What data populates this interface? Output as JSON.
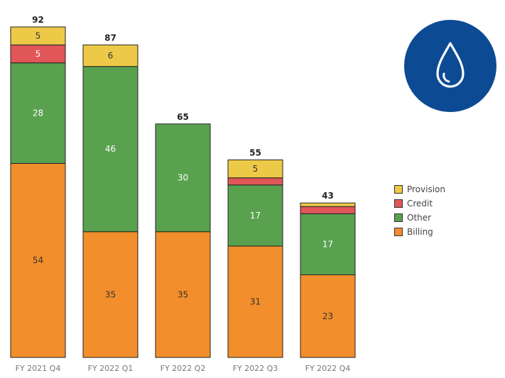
{
  "chart_data": {
    "type": "bar",
    "stacked": true,
    "categories": [
      "FY 2021 Q4",
      "FY 2022 Q1",
      "FY 2022 Q2",
      "FY 2022 Q3",
      "FY 2022 Q4"
    ],
    "totals": [
      92,
      87,
      65,
      55,
      43
    ],
    "series": [
      {
        "name": "Billing",
        "color": "#F28E2B",
        "values": [
          54,
          35,
          35,
          31,
          23
        ],
        "labels": [
          "54",
          "35",
          "35",
          "31",
          "23"
        ]
      },
      {
        "name": "Other",
        "color": "#59A14F",
        "values": [
          28,
          46,
          30,
          17,
          17
        ],
        "labels": [
          "28",
          "46",
          "30",
          "17",
          "17"
        ]
      },
      {
        "name": "Credit",
        "color": "#E15759",
        "values": [
          5,
          0,
          0,
          2,
          2
        ],
        "labels": [
          "5",
          "",
          "",
          "",
          ""
        ]
      },
      {
        "name": "Provision",
        "color": "#EDC948",
        "values": [
          5,
          6,
          0,
          5,
          1
        ],
        "labels": [
          "5",
          "6",
          "",
          "5",
          ""
        ]
      }
    ],
    "legend_order": [
      "Provision",
      "Credit",
      "Other",
      "Billing"
    ],
    "legend_position": "right",
    "ylim": [
      0,
      92
    ],
    "grid": false
  },
  "logo": {
    "icon": "water-drop-icon",
    "color": "#0D4A94"
  }
}
